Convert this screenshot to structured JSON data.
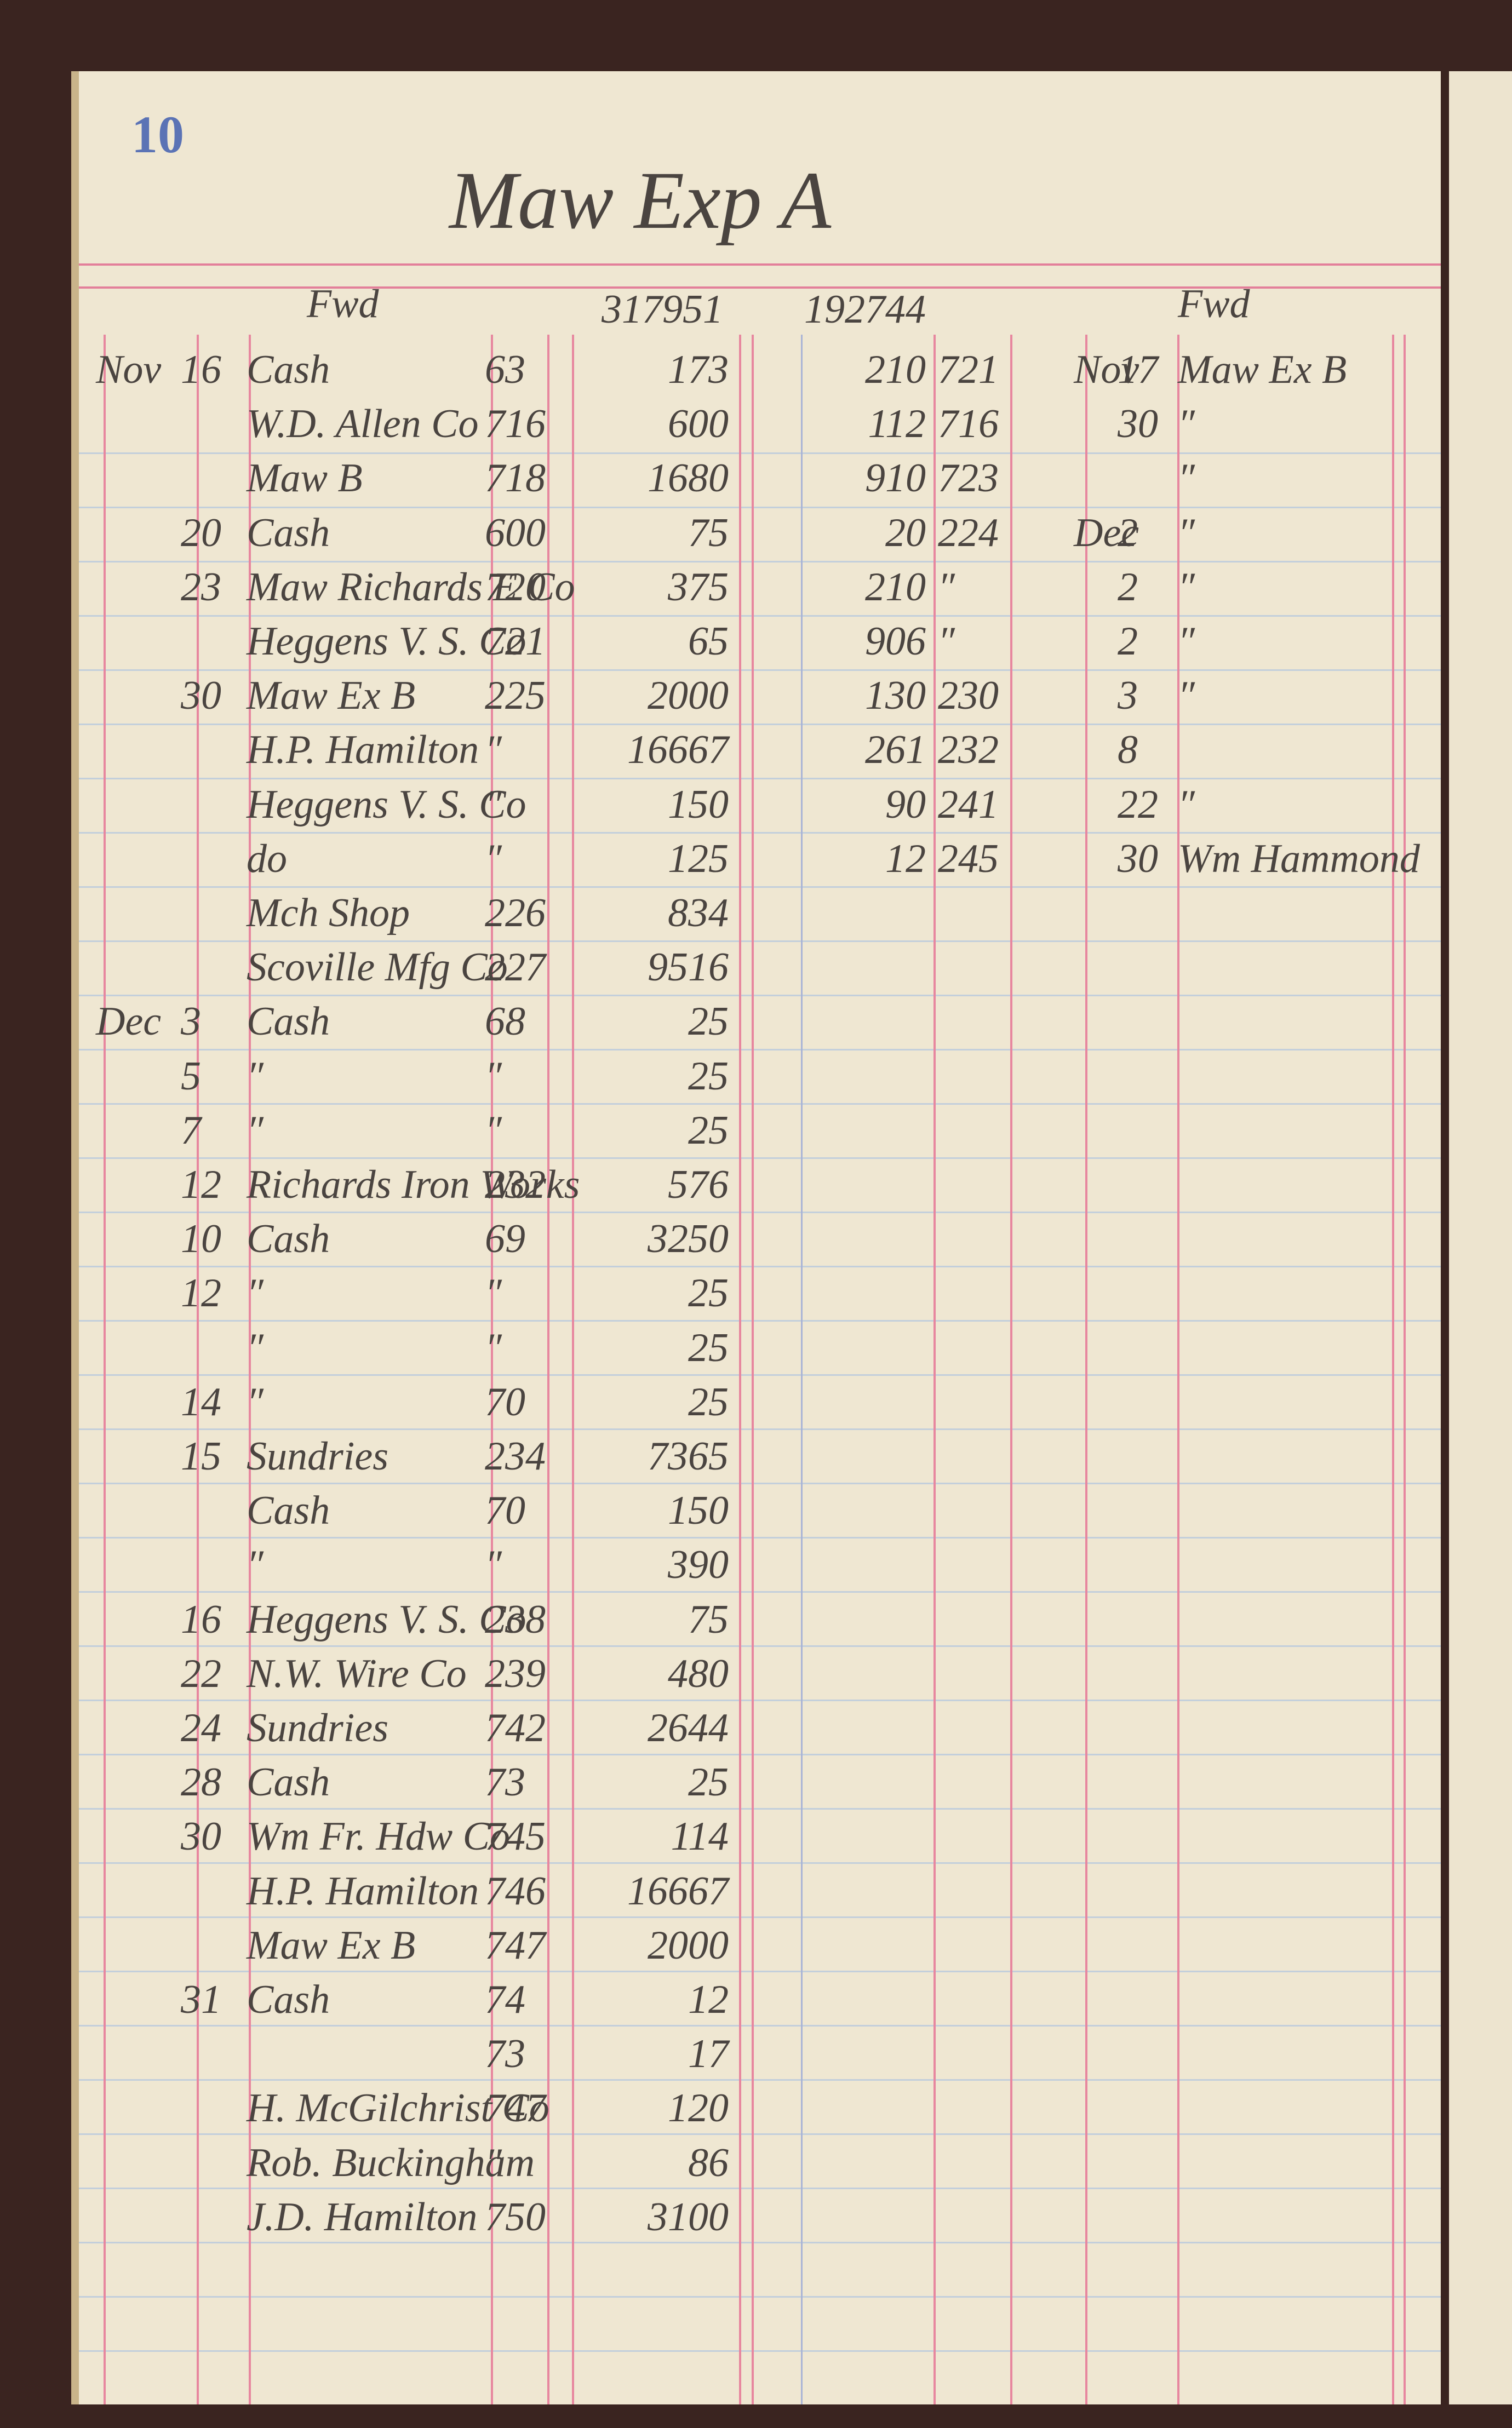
{
  "header": {
    "page_number": "10",
    "title": "Maw Exp A"
  },
  "ledger": {
    "left": {
      "heading": "Fwd",
      "brought_forward": "317951",
      "entries": [
        {
          "month": "Nov",
          "day": "16",
          "name": "Cash",
          "folio": "63",
          "amount": "173"
        },
        {
          "name": "W.D. Allen Co",
          "folio": "716",
          "amount": "600"
        },
        {
          "name": "Maw B",
          "folio": "718",
          "amount": "1680"
        },
        {
          "day": "20",
          "name": "Cash",
          "folio": "600",
          "amount": "75"
        },
        {
          "day": "23",
          "name": "Maw Richards E Co",
          "folio": "720",
          "amount": "375"
        },
        {
          "name": "Heggens V. S. Co",
          "folio": "721",
          "amount": "65"
        },
        {
          "day": "30",
          "name": "Maw Ex B",
          "folio": "225",
          "amount": "2000"
        },
        {
          "name": "H.P. Hamilton",
          "folio": "″",
          "amount": "16667"
        },
        {
          "name": "Heggens V. S. Co",
          "folio": "″",
          "amount": "150"
        },
        {
          "name": "do",
          "folio": "″",
          "amount": "125"
        },
        {
          "name": "Mch Shop",
          "folio": "226",
          "amount": "834"
        },
        {
          "name": "Scoville Mfg Co",
          "folio": "227",
          "amount": "9516"
        },
        {
          "month": "Dec",
          "day": "3",
          "name": "Cash",
          "folio": "68",
          "amount": "25"
        },
        {
          "day": "5",
          "name": "″",
          "folio": "″",
          "amount": "25"
        },
        {
          "day": "7",
          "name": "″",
          "folio": "″",
          "amount": "25"
        },
        {
          "day": "12",
          "name": "Richards Iron Works",
          "folio": "232",
          "amount": "576"
        },
        {
          "day": "10",
          "name": "Cash",
          "folio": "69",
          "amount": "3250"
        },
        {
          "day": "12",
          "name": "″",
          "folio": "″",
          "amount": "25"
        },
        {
          "name": "″",
          "folio": "″",
          "amount": "25"
        },
        {
          "day": "14",
          "name": "″",
          "folio": "70",
          "amount": "25"
        },
        {
          "day": "15",
          "name": "Sundries",
          "folio": "234",
          "amount": "7365"
        },
        {
          "name": "Cash",
          "folio": "70",
          "amount": "150"
        },
        {
          "name": "″",
          "folio": "″",
          "amount": "390"
        },
        {
          "day": "16",
          "name": "Heggens V. S. Co",
          "folio": "238",
          "amount": "75"
        },
        {
          "day": "22",
          "name": "N.W. Wire Co",
          "folio": "239",
          "amount": "480"
        },
        {
          "day": "24",
          "name": "Sundries",
          "folio": "742",
          "amount": "2644"
        },
        {
          "day": "28",
          "name": "Cash",
          "folio": "73",
          "amount": "25"
        },
        {
          "day": "30",
          "name": "Wm Fr. Hdw Co",
          "folio": "745",
          "amount": "114"
        },
        {
          "name": "H.P. Hamilton",
          "folio": "746",
          "amount": "16667"
        },
        {
          "name": "Maw Ex B",
          "folio": "747",
          "amount": "2000"
        },
        {
          "day": "31",
          "name": "Cash",
          "folio": "74",
          "amount": "12"
        },
        {
          "folio": "73",
          "amount": "17"
        },
        {
          "name": "H. McGilchrist Co",
          "folio": "747",
          "amount": "120"
        },
        {
          "name": "Rob. Buckingham",
          "folio": "″",
          "amount": "86"
        },
        {
          "name": "J.D. Hamilton",
          "folio": "750",
          "amount": "3100"
        }
      ]
    },
    "right": {
      "heading": "Fwd",
      "brought_forward": "192744",
      "entries": [
        {
          "amount": "210",
          "folio": "721",
          "month": "Nov",
          "day": "17",
          "name": "Maw Ex B"
        },
        {
          "amount": "112",
          "folio": "716",
          "day": "30",
          "name": "″"
        },
        {
          "amount": "910",
          "folio": "723",
          "name": "″"
        },
        {
          "amount": "20",
          "folio": "224",
          "month": "Dec",
          "day": "2",
          "name": "″"
        },
        {
          "amount": "210",
          "folio": "″",
          "day": "2",
          "name": "″"
        },
        {
          "amount": "906",
          "folio": "″",
          "day": "2",
          "name": "″"
        },
        {
          "amount": "130",
          "folio": "230",
          "day": "3",
          "name": "″"
        },
        {
          "amount": "261",
          "folio": "232",
          "day": "8"
        },
        {
          "amount": "90",
          "folio": "241",
          "day": "22",
          "name": "″"
        },
        {
          "amount": "12",
          "folio": "245",
          "day": "30",
          "name": "Wm Hammond"
        }
      ]
    }
  }
}
